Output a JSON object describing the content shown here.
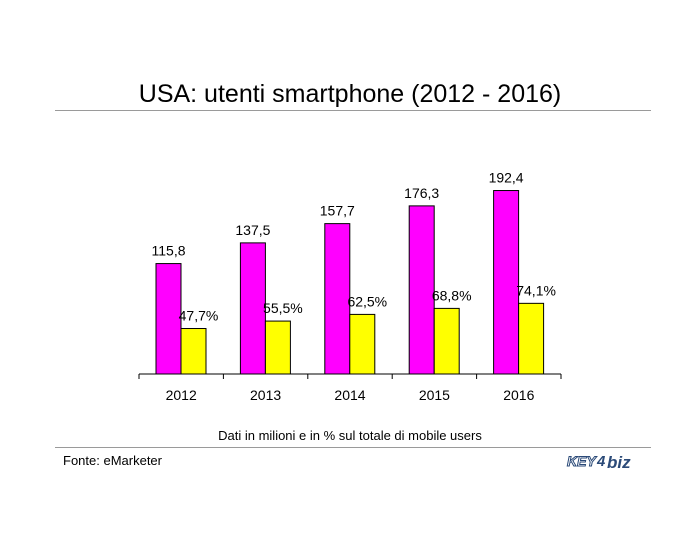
{
  "title": "USA: utenti smartphone (2012 - 2016)",
  "note": "Dati in milioni e in % sul totale di mobile users",
  "source": "Fonte: eMarketer",
  "logo": {
    "text": "KEY4biz"
  },
  "colors": {
    "series_1": "#ff00ff",
    "series_2": "#ffff00",
    "rule": "#9a9a9a",
    "axis": "#000000"
  },
  "chart_data": {
    "type": "bar",
    "categories": [
      "2012",
      "2013",
      "2014",
      "2015",
      "2016"
    ],
    "series": [
      {
        "values": [
          115.8,
          137.5,
          157.7,
          176.3,
          192.4
        ],
        "labels": [
          "115,8",
          "137,5",
          "157,7",
          "176,3",
          "192,4"
        ]
      },
      {
        "values": [
          47.7,
          55.5,
          62.5,
          68.8,
          74.1
        ],
        "labels": [
          "47,7%",
          "55,5%",
          "62,5%",
          "68,8%",
          "74,1%"
        ]
      }
    ],
    "title": "USA: utenti smartphone (2012 - 2016)",
    "xlabel": "",
    "ylabel": "",
    "grid": false,
    "legend": "none"
  }
}
